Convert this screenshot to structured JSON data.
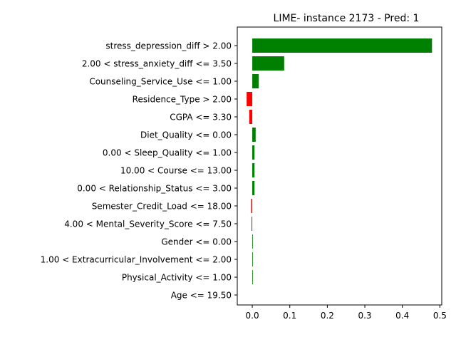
{
  "chart_data": {
    "type": "bar",
    "orientation": "horizontal",
    "title": "LIME- instance 2173 - Pred: 1",
    "xlabel": "",
    "ylabel": "",
    "xlim": [
      -0.04,
      0.505
    ],
    "xticks": [
      0.0,
      0.1,
      0.2,
      0.3,
      0.4,
      0.5
    ],
    "xtick_labels": [
      "0.0",
      "0.1",
      "0.2",
      "0.3",
      "0.4",
      "0.5"
    ],
    "grid": false,
    "positive_color": "#008000",
    "negative_color": "#ff0000",
    "categories": [
      "stress_depression_diff > 2.00",
      "2.00 < stress_anxiety_diff <= 3.50",
      "Counseling_Service_Use <= 1.00",
      "Residence_Type > 2.00",
      "CGPA <= 3.30",
      "Diet_Quality <= 0.00",
      "0.00 < Sleep_Quality <= 1.00",
      "10.00 < Course <= 13.00",
      "0.00 < Relationship_Status <= 3.00",
      "Semester_Credit_Load <= 18.00",
      "4.00 < Mental_Severity_Score <= 7.50",
      "Gender <= 0.00",
      "1.00 < Extracurricular_Involvement <= 2.00",
      "Physical_Activity <= 1.00",
      "Age <= 19.50"
    ],
    "values": [
      0.479,
      0.085,
      0.017,
      -0.015,
      -0.008,
      0.009,
      0.006,
      0.006,
      0.006,
      -0.003,
      -0.002,
      0.001,
      0.001,
      0.001,
      0.0
    ]
  }
}
